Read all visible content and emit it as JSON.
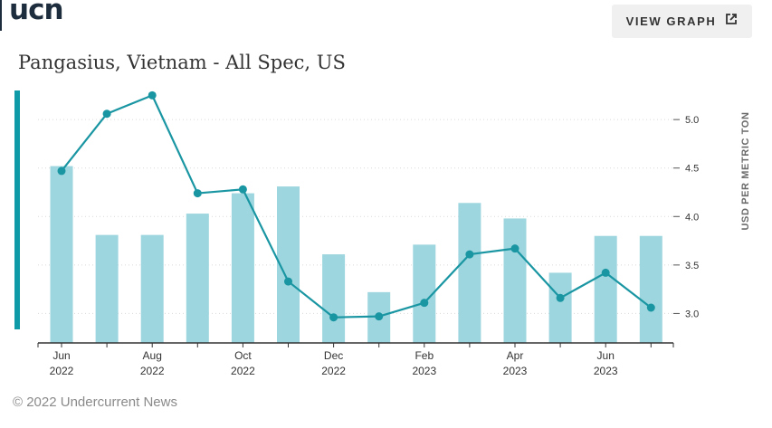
{
  "logo": "ucn",
  "header": {
    "view_graph_label": "VIEW GRAPH",
    "view_graph_icon": "external-link-icon"
  },
  "footer": {
    "copyright": "© 2022 Undercurrent News"
  },
  "chart_data": {
    "type": "bar+line",
    "title": "Pangasius, Vietnam - All Spec, US",
    "ylabel": "USD PER METRIC TON",
    "ylim": [
      2.78,
      5.3
    ],
    "yticks": [
      3.0,
      3.5,
      4.0,
      4.5,
      5.0
    ],
    "categories": [
      "Jun 2022",
      "Jul 2022",
      "Aug 2022",
      "Sep 2022",
      "Oct 2022",
      "Nov 2022",
      "Dec 2022",
      "Jan 2023",
      "Feb 2023",
      "Mar 2023",
      "Apr 2023",
      "May 2023",
      "Jun 2023",
      "Jul 2023"
    ],
    "xtick_labels": [
      {
        "index": 0,
        "month": "Jun",
        "year": "2022"
      },
      {
        "index": 2,
        "month": "Aug",
        "year": "2022"
      },
      {
        "index": 4,
        "month": "Oct",
        "year": "2022"
      },
      {
        "index": 6,
        "month": "Dec",
        "year": "2022"
      },
      {
        "index": 8,
        "month": "Feb",
        "year": "2023"
      },
      {
        "index": 10,
        "month": "Apr",
        "year": "2023"
      },
      {
        "index": 12,
        "month": "Jun",
        "year": "2023"
      }
    ],
    "series": [
      {
        "type": "bar",
        "color": "#9dd6de",
        "values": [
          4.52,
          3.81,
          3.81,
          4.03,
          4.24,
          4.31,
          3.61,
          3.22,
          3.71,
          4.14,
          3.98,
          3.42,
          3.8,
          3.8
        ]
      },
      {
        "type": "line",
        "color": "#1a96a3",
        "values": [
          4.47,
          5.06,
          5.25,
          4.24,
          4.28,
          3.33,
          2.96,
          2.97,
          3.11,
          3.61,
          3.67,
          3.16,
          3.42,
          3.06
        ]
      }
    ],
    "grid": "horizontal dotted"
  }
}
